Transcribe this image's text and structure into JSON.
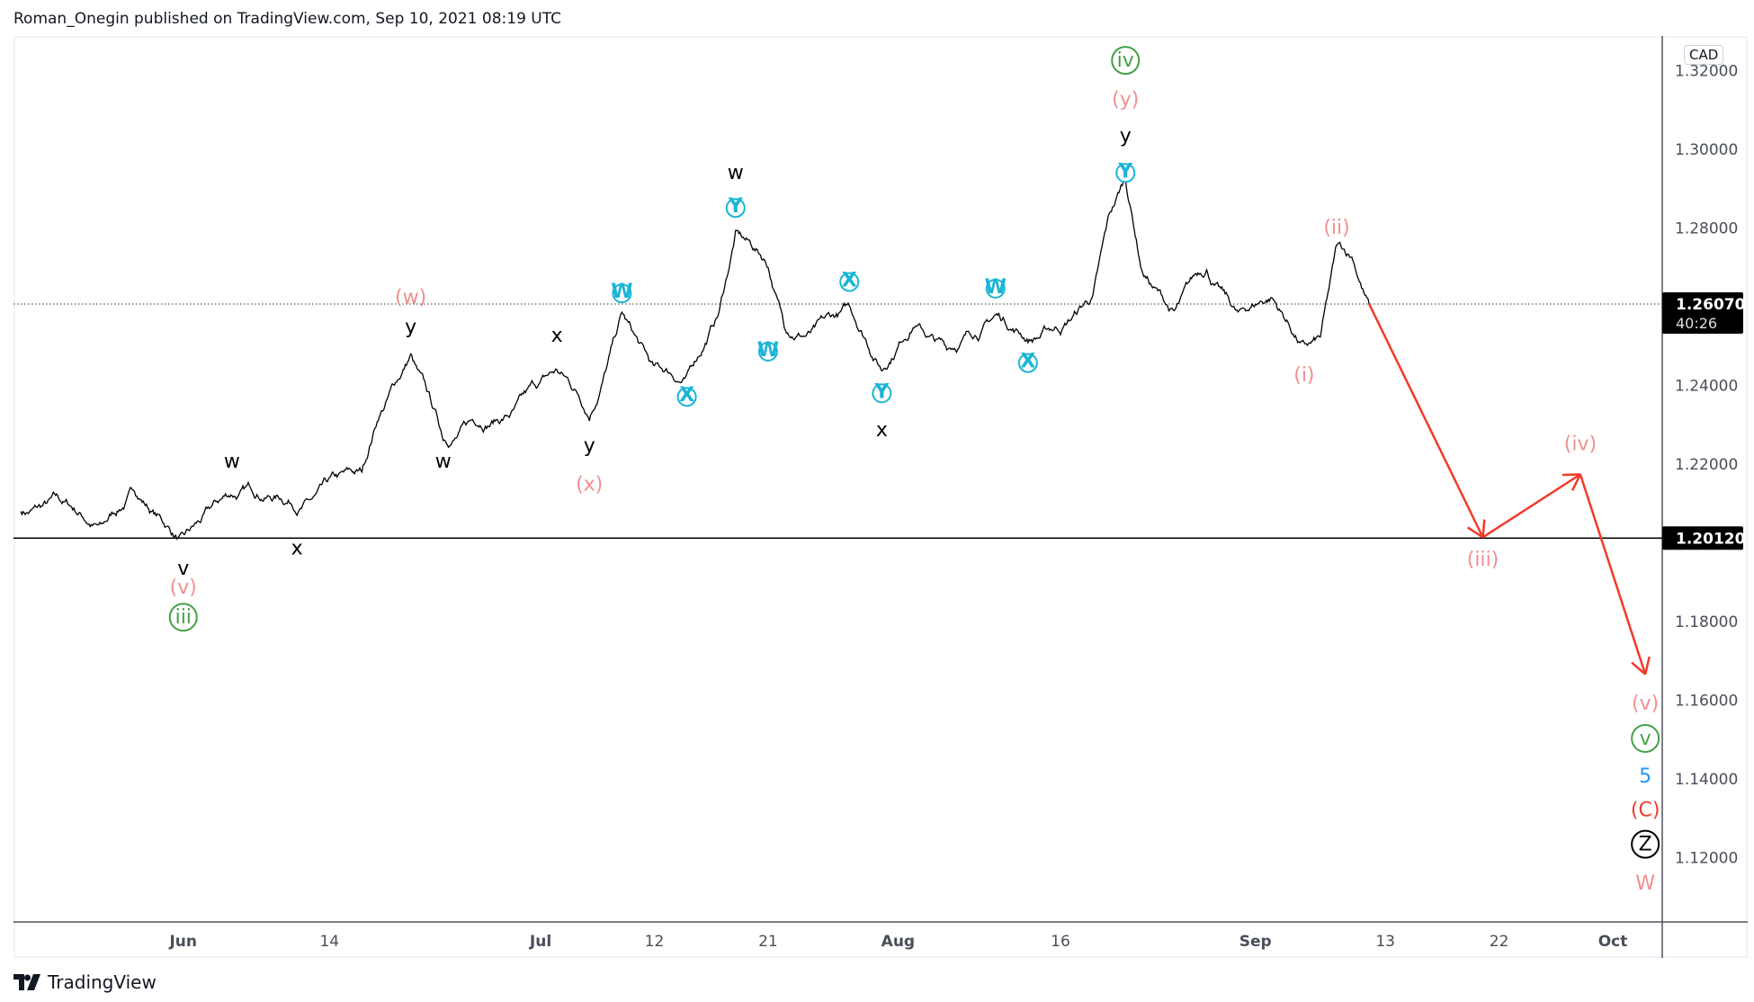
{
  "header": {
    "text": "Roman_Onegin published on TradingView.com, Sep 10, 2021 08:19 UTC"
  },
  "footer": {
    "brand": "TradingView",
    "logo_icon": "tradingview-logo-icon"
  },
  "currency_badge": "CAD",
  "colors": {
    "price_line": "#000000",
    "projection": "#f23a2a",
    "pink": "#f28f8f",
    "green": "#43a047",
    "cyan": "#1bb5d6",
    "blue": "#2196f3",
    "red": "#f23a2a",
    "black": "#000000"
  },
  "chart_data": {
    "type": "line",
    "ylim": [
      1.105,
      1.3245
    ],
    "y_ticks": [
      "1.32000",
      "1.30000",
      "1.28000",
      "1.24000",
      "1.22000",
      "1.18000",
      "1.16000",
      "1.14000",
      "1.12000"
    ],
    "x_ticks": [
      {
        "label": "Jun",
        "date": "2021-06-01"
      },
      {
        "label": "14",
        "date": "2021-06-14"
      },
      {
        "label": "Jul",
        "date": "2021-07-01"
      },
      {
        "label": "12",
        "date": "2021-07-12"
      },
      {
        "label": "21",
        "date": "2021-07-21"
      },
      {
        "label": "Aug",
        "date": "2021-08-02"
      },
      {
        "label": "16",
        "date": "2021-08-16"
      },
      {
        "label": "Sep",
        "date": "2021-09-01"
      },
      {
        "label": "13",
        "date": "2021-09-13"
      },
      {
        "label": "22",
        "date": "2021-09-22"
      },
      {
        "label": "Oct",
        "date": "2021-10-01"
      }
    ],
    "last_price": {
      "value": "1.26070",
      "countdown": "40:26",
      "price": 1.2607
    },
    "horizontal_level": {
      "value": "1.20120",
      "price": 1.2012
    },
    "price_path": [
      [
        "2021-05-18",
        1.208
      ],
      [
        "2021-05-20",
        1.2129
      ],
      [
        "2021-05-25",
        1.205
      ],
      [
        "2021-05-27",
        1.213
      ],
      [
        "2021-06-01",
        1.2023
      ],
      [
        "2021-06-04",
        1.212
      ],
      [
        "2021-06-10",
        1.207
      ],
      [
        "2021-06-14",
        1.2166
      ],
      [
        "2021-06-16",
        1.218
      ],
      [
        "2021-06-17",
        1.231
      ],
      [
        "2021-06-21",
        1.248
      ],
      [
        "2021-06-23",
        1.226
      ],
      [
        "2021-06-28",
        1.231
      ],
      [
        "2021-07-02",
        1.244
      ],
      [
        "2021-07-06",
        1.231
      ],
      [
        "2021-07-08",
        1.2586
      ],
      [
        "2021-07-12",
        1.245
      ],
      [
        "2021-07-14",
        1.2429
      ],
      [
        "2021-07-16",
        1.259
      ],
      [
        "2021-07-19",
        1.2794
      ],
      [
        "2021-07-21",
        1.27
      ],
      [
        "2021-07-22",
        1.2546
      ],
      [
        "2021-07-27",
        1.258
      ],
      [
        "2021-07-28",
        1.2603
      ],
      [
        "2021-07-30",
        1.2437
      ],
      [
        "2021-08-03",
        1.2546
      ],
      [
        "2021-08-05",
        1.249
      ],
      [
        "2021-08-10",
        1.258
      ],
      [
        "2021-08-12",
        1.2509
      ],
      [
        "2021-08-16",
        1.2529
      ],
      [
        "2021-08-18",
        1.263
      ],
      [
        "2021-08-19",
        1.2837
      ],
      [
        "2021-08-20",
        1.2923
      ],
      [
        "2021-08-23",
        1.2694
      ],
      [
        "2021-08-25",
        1.259
      ],
      [
        "2021-08-27",
        1.2694
      ],
      [
        "2021-08-31",
        1.259
      ],
      [
        "2021-09-02",
        1.2623
      ],
      [
        "2021-09-06",
        1.2509
      ],
      [
        "2021-09-07",
        1.2523
      ],
      [
        "2021-09-08",
        1.2757
      ],
      [
        "2021-09-09",
        1.2717
      ],
      [
        "2021-09-10",
        1.2607
      ]
    ],
    "projection_path": [
      [
        "2021-09-10",
        1.2607
      ],
      [
        "2021-09-21",
        1.2014
      ],
      [
        "2021-09-29",
        1.2174
      ],
      [
        "2021-10-05",
        1.1666
      ]
    ],
    "wave_labels": [
      {
        "text": "w",
        "date": "2021-06-04",
        "price": 1.2209,
        "color": "black",
        "circled": false
      },
      {
        "text": "v",
        "date": "2021-06-01",
        "price": 1.1937,
        "color": "black",
        "circled": false
      },
      {
        "text": "x",
        "date": "2021-06-10",
        "price": 1.1989,
        "color": "black",
        "circled": false
      },
      {
        "text": "y",
        "date": "2021-06-21",
        "price": 1.2551,
        "color": "black",
        "circled": false
      },
      {
        "text": "w",
        "date": "2021-06-23",
        "price": 1.2209,
        "color": "black",
        "circled": false
      },
      {
        "text": "x",
        "date": "2021-07-02",
        "price": 1.2529,
        "color": "black",
        "circled": false
      },
      {
        "text": "y",
        "date": "2021-07-06",
        "price": 1.2249,
        "color": "black",
        "circled": false
      },
      {
        "text": "w",
        "date": "2021-07-19",
        "price": 1.2943,
        "color": "black",
        "circled": false
      },
      {
        "text": "x",
        "date": "2021-07-30",
        "price": 1.2289,
        "color": "black",
        "circled": false
      },
      {
        "text": "y",
        "date": "2021-08-20",
        "price": 1.3037,
        "color": "black",
        "circled": false
      },
      {
        "text": "(w)",
        "date": "2021-06-21",
        "price": 1.2626,
        "color": "pink",
        "circled": false
      },
      {
        "text": "(x)",
        "date": "2021-07-06",
        "price": 1.2151,
        "color": "pink",
        "circled": false
      },
      {
        "text": "(y)",
        "date": "2021-08-20",
        "price": 1.3129,
        "color": "pink",
        "circled": false
      },
      {
        "text": "(i)",
        "date": "2021-09-06",
        "price": 1.2429,
        "color": "pink",
        "circled": false
      },
      {
        "text": "(ii)",
        "date": "2021-09-08",
        "price": 1.2803,
        "color": "pink",
        "circled": false
      },
      {
        "text": "(iii)",
        "date": "2021-09-21",
        "price": 1.196,
        "color": "pink",
        "circled": false
      },
      {
        "text": "(iv)",
        "date": "2021-09-29",
        "price": 1.2254,
        "color": "pink",
        "circled": false
      },
      {
        "text": "(v)",
        "date": "2021-06-01",
        "price": 1.1889,
        "color": "pink",
        "circled": false
      },
      {
        "text": "(v)",
        "date": "2021-10-05",
        "price": 1.1594,
        "color": "pink",
        "circled": false
      },
      {
        "text": "iii",
        "date": "2021-06-01",
        "price": 1.1811,
        "color": "green",
        "circled": true
      },
      {
        "text": "iv",
        "date": "2021-08-20",
        "price": 1.3226,
        "color": "green",
        "circled": true
      },
      {
        "text": "v",
        "date": "2021-10-05",
        "price": 1.1503,
        "color": "green",
        "circled": true
      },
      {
        "text": "W",
        "date": "2021-07-08",
        "price": 1.2634,
        "color": "cyan",
        "circled": true
      },
      {
        "text": "X",
        "date": "2021-07-14",
        "price": 1.2371,
        "color": "cyan",
        "circled": true
      },
      {
        "text": "Y",
        "date": "2021-07-19",
        "price": 1.2851,
        "color": "cyan",
        "circled": true
      },
      {
        "text": "W",
        "date": "2021-07-21",
        "price": 1.2486,
        "color": "cyan",
        "circled": true
      },
      {
        "text": "X",
        "date": "2021-07-28",
        "price": 1.2663,
        "color": "cyan",
        "circled": true
      },
      {
        "text": "Y",
        "date": "2021-07-30",
        "price": 1.238,
        "color": "cyan",
        "circled": true
      },
      {
        "text": "W",
        "date": "2021-08-10",
        "price": 1.2646,
        "color": "cyan",
        "circled": true
      },
      {
        "text": "X",
        "date": "2021-08-12",
        "price": 1.2457,
        "color": "cyan",
        "circled": true
      },
      {
        "text": "Y",
        "date": "2021-08-20",
        "price": 1.294,
        "color": "cyan",
        "circled": true
      },
      {
        "text": "5",
        "date": "2021-10-05",
        "price": 1.1409,
        "color": "blue",
        "circled": false
      },
      {
        "text": "(C)",
        "date": "2021-10-05",
        "price": 1.1323,
        "color": "red",
        "circled": false
      },
      {
        "text": "Z",
        "date": "2021-10-05",
        "price": 1.1234,
        "color": "black",
        "circled": true
      },
      {
        "text": "W",
        "date": "2021-10-05",
        "price": 1.1137,
        "color": "pink",
        "circled": false
      }
    ]
  }
}
